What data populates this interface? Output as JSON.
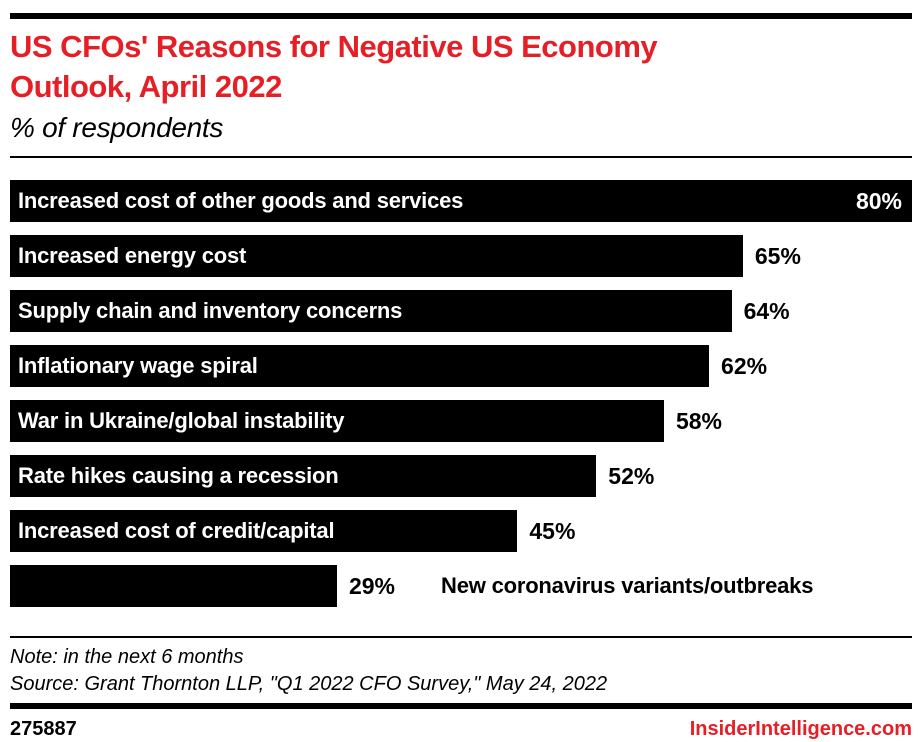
{
  "colors": {
    "accent_red": "#e61e26",
    "bar_black": "#000000",
    "bar_label_white": "#ffffff"
  },
  "header": {
    "title_line1": "US CFOs' Reasons for Negative US Economy",
    "title_line2": "Outlook, April 2022",
    "subtitle": "% of respondents"
  },
  "chart_data": {
    "type": "bar",
    "orientation": "horizontal",
    "title": "US CFOs' Reasons for Negative US Economy Outlook, April 2022",
    "ylabel": "% of respondents",
    "xlim": [
      0,
      80
    ],
    "grid": false,
    "legend": "none",
    "categories": [
      "Increased cost of other goods and services",
      "Increased energy cost",
      "Supply chain and inventory concerns",
      "Inflationary wage spiral",
      "War in Ukraine/global instability",
      "Rate hikes causing a recession",
      "Increased cost of credit/capital",
      "New coronavirus variants/outbreaks"
    ],
    "values": [
      80,
      65,
      64,
      62,
      58,
      52,
      45,
      29
    ],
    "items": [
      {
        "label": "Increased cost of other goods and services",
        "value": 80,
        "value_label": "80%",
        "value_placement": "inside",
        "label_placement": "inside"
      },
      {
        "label": "Increased energy cost",
        "value": 65,
        "value_label": "65%",
        "value_placement": "outside",
        "label_placement": "inside"
      },
      {
        "label": "Supply chain and inventory concerns",
        "value": 64,
        "value_label": "64%",
        "value_placement": "outside",
        "label_placement": "inside"
      },
      {
        "label": "Inflationary wage spiral",
        "value": 62,
        "value_label": "62%",
        "value_placement": "outside",
        "label_placement": "inside"
      },
      {
        "label": "War in Ukraine/global instability",
        "value": 58,
        "value_label": "58%",
        "value_placement": "outside",
        "label_placement": "inside"
      },
      {
        "label": "Rate hikes causing a recession",
        "value": 52,
        "value_label": "52%",
        "value_placement": "outside",
        "label_placement": "inside"
      },
      {
        "label": "Increased cost of credit/capital",
        "value": 45,
        "value_label": "45%",
        "value_placement": "outside",
        "label_placement": "inside"
      },
      {
        "label": "New coronavirus variants/outbreaks",
        "value": 29,
        "value_label": "29%",
        "value_placement": "outside",
        "label_placement": "outside"
      }
    ]
  },
  "footer": {
    "note": "Note: in the next 6 months",
    "source": "Source: Grant Thornton LLP, \"Q1 2022 CFO Survey,\" May 24, 2022",
    "chart_id": "275887",
    "brand": "InsiderIntelligence.com"
  }
}
